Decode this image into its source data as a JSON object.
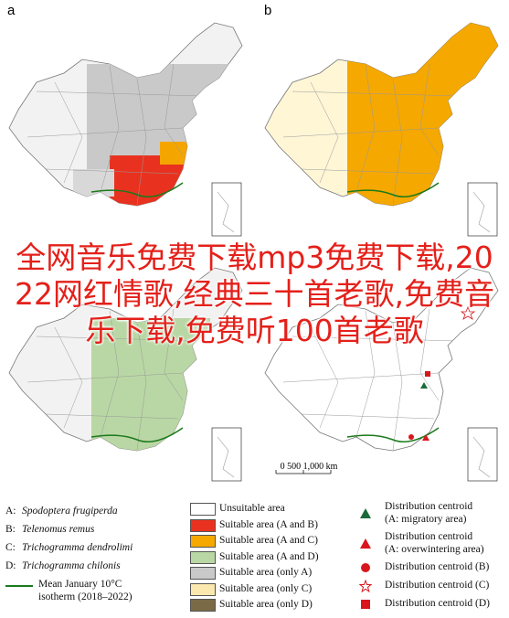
{
  "panels": [
    "a",
    "b"
  ],
  "overlay_title": "全网音乐免费下载mp3免费下载,2022网红情歌,经典三十首老歌,免费音乐下载,免费听100首老歌",
  "scale_bar": "0   500 1,000 km",
  "species": [
    {
      "key": "A:",
      "name": "Spodoptera frugiperda"
    },
    {
      "key": "B:",
      "name": "Telenomus remus"
    },
    {
      "key": "C:",
      "name": "Trichogramma dendrolimi"
    },
    {
      "key": "D:",
      "name": "Trichogramma chilonis"
    }
  ],
  "isotherm": [
    "Mean January 10°C",
    "isotherm  (2018–2022)"
  ],
  "areas": [
    {
      "label": "Unsuitable area",
      "color": "#ffffff"
    },
    {
      "label": "Suitable area (A and B)",
      "color": "#e8321f"
    },
    {
      "label": "Suitable area (A and C)",
      "color": "#f5a800"
    },
    {
      "label": "Suitable area (A and D)",
      "color": "#b9d7a4"
    },
    {
      "label": "Suitable area (only A)",
      "color": "#c9c9c9"
    },
    {
      "label": "Suitable area (only C)",
      "color": "#fbe8ae"
    },
    {
      "label": "Suitable area (only D)",
      "color": "#7a6a45"
    }
  ],
  "centroids": [
    {
      "lines": [
        "Distribution centroid",
        "(A: migratory area)"
      ],
      "symbol": "triangle",
      "color": "#1b6b3a"
    },
    {
      "lines": [
        "Distribution centroid",
        "(A: overwintering area)"
      ],
      "symbol": "triangle",
      "color": "#d9161c"
    },
    {
      "lines": [
        "Distribution centroid (B)"
      ],
      "symbol": "circle",
      "color": "#d9161c"
    },
    {
      "lines": [
        "Distribution centroid (C)"
      ],
      "symbol": "star",
      "color": "#d9161c"
    },
    {
      "lines": [
        "Distribution centroid (D)"
      ],
      "symbol": "square",
      "color": "#d9161c"
    }
  ]
}
